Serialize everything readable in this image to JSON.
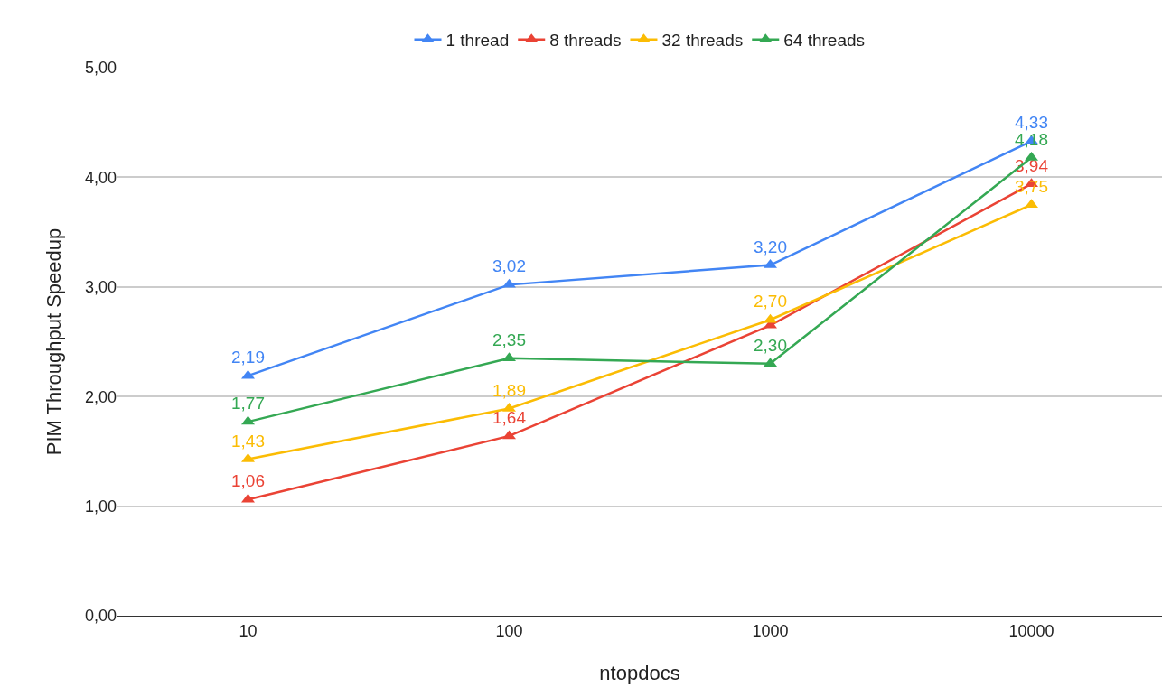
{
  "chart_data": {
    "type": "line",
    "xlabel": "ntopdocs",
    "ylabel": "PIM Throughput Speedup",
    "categories": [
      "10",
      "100",
      "1000",
      "10000"
    ],
    "series": [
      {
        "name": "1 thread",
        "color": "#4285f4",
        "values": [
          2.19,
          3.02,
          3.2,
          4.33
        ],
        "value_labels": [
          "2,19",
          "3,02",
          "3,20",
          "4,33"
        ]
      },
      {
        "name": "8 threads",
        "color": "#ea4335",
        "values": [
          1.06,
          1.64,
          2.65,
          3.94
        ],
        "value_labels": [
          "1,06",
          "1,64",
          null,
          "3,94"
        ]
      },
      {
        "name": "32 threads",
        "color": "#fbbc04",
        "values": [
          1.43,
          1.89,
          2.7,
          3.75
        ],
        "value_labels": [
          "1,43",
          "1,89",
          "2,70",
          "3,75"
        ]
      },
      {
        "name": "64 threads",
        "color": "#34a853",
        "values": [
          1.77,
          2.35,
          2.3,
          4.18
        ],
        "value_labels": [
          "1,77",
          "2,35",
          "2,30",
          "4,18"
        ]
      }
    ],
    "ylim": [
      0,
      5
    ],
    "yticks": [
      {
        "value": 0,
        "label": "0,00"
      },
      {
        "value": 1,
        "label": "1,00"
      },
      {
        "value": 2,
        "label": "2,00"
      },
      {
        "value": 3,
        "label": "3,00"
      },
      {
        "value": 4,
        "label": "4,00"
      },
      {
        "value": 5,
        "label": "5,00"
      }
    ],
    "grid": "y",
    "legend": "top",
    "marker": "triangle",
    "line_style": "solid"
  }
}
